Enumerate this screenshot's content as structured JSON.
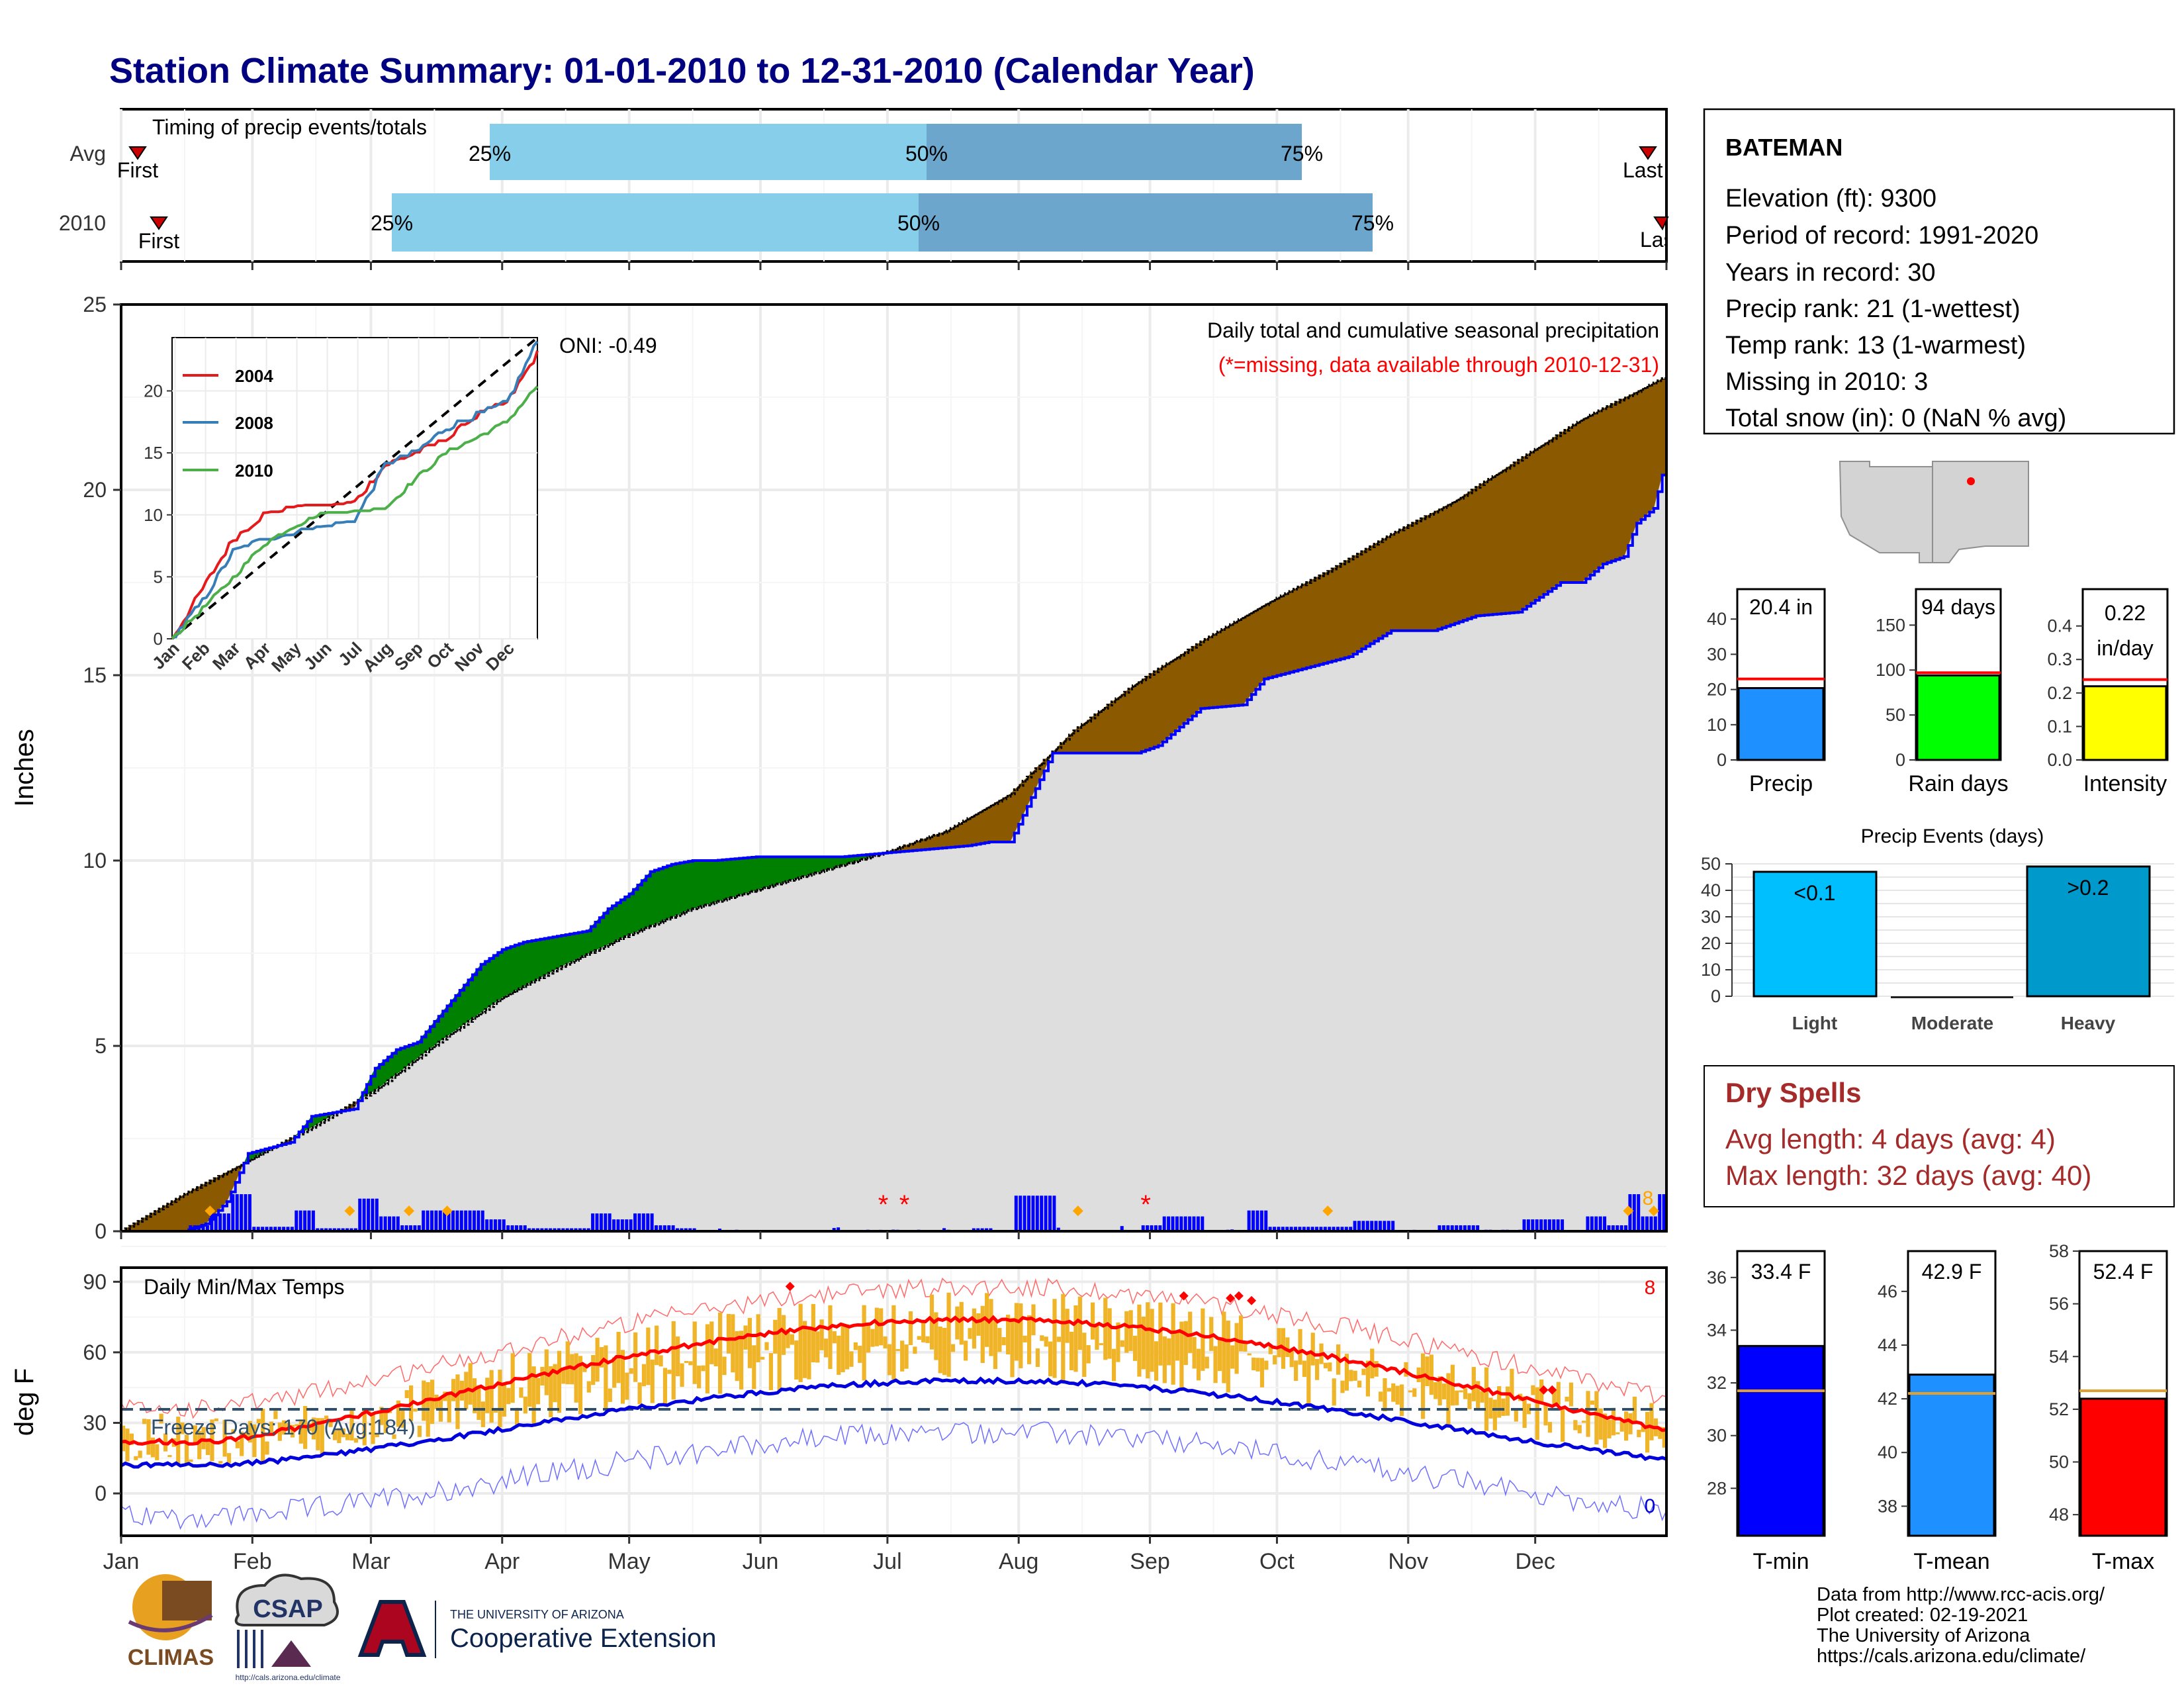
{
  "title": "Station Climate Summary: 01-01-2010 to 12-31-2010 (Calendar Year)",
  "months": [
    "Jan",
    "Feb",
    "Mar",
    "Apr",
    "May",
    "Jun",
    "Jul",
    "Aug",
    "Sep",
    "Oct",
    "Nov",
    "Dec"
  ],
  "timing": {
    "label": "Timing of precip events/totals",
    "rows": [
      {
        "name": "Avg",
        "first": "First",
        "last": "Last",
        "p25": "25%",
        "p50": "50%",
        "p75": "75%"
      },
      {
        "name": "2010",
        "first": "First",
        "last": "Last",
        "p25": "25%",
        "p50": "50%",
        "p75": "75%"
      }
    ]
  },
  "main": {
    "ylabel": "Inches",
    "annot_title": "Daily total and cumulative seasonal precipitation",
    "annot_missing": "(*=missing, data available through 2010-12-31)",
    "oni": "ONI: -0.49",
    "count_label": "8",
    "y_ticks": [
      "0",
      "5",
      "10",
      "15",
      "20",
      "25"
    ]
  },
  "inset": {
    "y_ticks": [
      "0",
      "5",
      "10",
      "15",
      "20"
    ],
    "legend": [
      "2004",
      "2008",
      "2010"
    ]
  },
  "temp": {
    "ylabel": "deg F",
    "label": "Daily Min/Max Temps",
    "freeze": "Freeze Days: 170 (Avg:184)",
    "count_high": "8",
    "count_low": "0",
    "y_ticks": [
      "0",
      "30",
      "60",
      "90"
    ]
  },
  "station": {
    "name": "BATEMAN",
    "lines": [
      "Elevation (ft): 9300",
      "Period of record: 1991-2020",
      "Years in record: 30",
      "Precip rank: 21 (1-wettest)",
      "Temp rank: 13 (1-warmest)",
      "Missing in 2010: 3",
      "Total snow (in): 0 (NaN % avg)"
    ]
  },
  "bars": {
    "precip": {
      "label": "Precip",
      "value_text": "20.4 in"
    },
    "raindays": {
      "label": "Rain days",
      "value_text": "94 days"
    },
    "intensity": {
      "label": "Intensity",
      "value_text_1": "0.22",
      "value_text_2": "in/day"
    }
  },
  "events": {
    "title": "Precip Events (days)",
    "light": "Light",
    "moderate": "Moderate",
    "heavy": "Heavy",
    "light_lbl": "<0.1",
    "heavy_lbl": ">0.2"
  },
  "dry": {
    "title": "Dry Spells",
    "avg": "Avg length: 4 days (avg: 4)",
    "max": "Max length: 32 days (avg: 40)"
  },
  "tbars": {
    "tmin": {
      "label": "T-min",
      "value_text": "33.4 F"
    },
    "tmean": {
      "label": "T-mean",
      "value_text": "42.9 F"
    },
    "tmax": {
      "label": "T-max",
      "value_text": "52.4 F"
    }
  },
  "credits": [
    "Data from http://www.rcc-acis.org/",
    "Plot created: 02-19-2021",
    "The University of Arizona",
    "https://cals.arizona.edu/climate/"
  ],
  "logos": {
    "climas": "CLIMAS",
    "csap": "CSAP",
    "csap_url": "http://cals.arizona.edu/climate",
    "ua_small": "THE UNIVERSITY OF ARIZONA",
    "coop": "Cooperative Extension"
  },
  "colors": {
    "title": "#000080",
    "brown": "#8B5A00",
    "green": "#008000",
    "gray": "#dedede",
    "blue": "#0000ff",
    "orange_dots": "#ffa500",
    "temp_bars": "#f0b428",
    "light_blue": "#87ceeb",
    "steel": "#6ca6cd",
    "red": "#ff0000",
    "dry": "#a52a2a"
  },
  "chart_data": [
    {
      "type": "area",
      "title": "Daily total and cumulative seasonal precipitation",
      "ylabel": "Inches",
      "ylim": [
        0,
        25
      ],
      "x_unit": "day of year",
      "series": [
        {
          "name": "Avg cumulative",
          "x": [
            0,
            15,
            30,
            45,
            60,
            75,
            90,
            105,
            120,
            135,
            150,
            165,
            180,
            195,
            210,
            225,
            240,
            255,
            270,
            285,
            300,
            315,
            330,
            345,
            364
          ],
          "values": [
            0,
            1.0,
            1.9,
            2.8,
            3.8,
            5.1,
            6.3,
            7.2,
            8.0,
            8.7,
            9.2,
            9.7,
            10.2,
            10.8,
            11.8,
            13.5,
            14.8,
            15.9,
            16.9,
            17.8,
            18.8,
            19.7,
            20.8,
            21.9,
            23.0
          ]
        },
        {
          "name": "2010 cumulative",
          "x": [
            0,
            15,
            20,
            25,
            30,
            40,
            45,
            55,
            60,
            65,
            70,
            75,
            80,
            85,
            90,
            95,
            100,
            105,
            110,
            115,
            120,
            125,
            130,
            135,
            140,
            150,
            160,
            170,
            180,
            190,
            200,
            205,
            210,
            215,
            220,
            225,
            230,
            240,
            245,
            250,
            255,
            265,
            270,
            280,
            290,
            300,
            310,
            315,
            320,
            330,
            340,
            345,
            350,
            355,
            358,
            362,
            364
          ],
          "values": [
            0,
            0,
            0.2,
            0.8,
            2.1,
            2.4,
            3.1,
            3.3,
            4.4,
            4.9,
            5.1,
            5.8,
            6.5,
            7.2,
            7.6,
            7.8,
            7.9,
            8.0,
            8.1,
            8.7,
            9.1,
            9.7,
            9.9,
            10.0,
            10.0,
            10.1,
            10.1,
            10.1,
            10.2,
            10.3,
            10.4,
            10.5,
            10.5,
            11.7,
            12.9,
            12.9,
            12.9,
            12.9,
            13.1,
            13.6,
            14.1,
            14.2,
            14.9,
            15.2,
            15.5,
            16.2,
            16.2,
            16.4,
            16.6,
            16.7,
            17.5,
            17.5,
            18.0,
            18.2,
            19.1,
            19.5,
            20.4
          ]
        }
      ]
    },
    {
      "type": "line",
      "series": [
        {
          "name": "2004",
          "values_by_month": [
            0,
            4,
            8,
            10,
            10.5,
            10.5,
            11,
            14,
            15,
            16,
            18,
            19,
            23
          ]
        },
        {
          "name": "2008",
          "values_by_month": [
            0,
            3,
            7,
            8,
            8.5,
            9,
            9.5,
            14,
            15,
            17,
            18,
            19,
            24
          ]
        },
        {
          "name": "2010",
          "values_by_month": [
            0,
            2.4,
            4.9,
            7.6,
            9.1,
            10.1,
            10.2,
            10.5,
            12.9,
            15.0,
            16.2,
            17.5,
            20.4
          ]
        }
      ],
      "ylim": [
        0,
        24
      ]
    },
    {
      "type": "bar",
      "categories": [
        "Precip",
        "Rain days",
        "Intensity"
      ],
      "values": [
        20.4,
        94,
        0.22
      ],
      "averages": [
        23,
        97,
        0.24
      ]
    },
    {
      "type": "bar",
      "title": "Precip Events (days)",
      "categories": [
        "Light",
        "Moderate",
        "Heavy"
      ],
      "values": [
        47,
        0,
        49
      ],
      "ylim": [
        0,
        50
      ]
    },
    {
      "type": "bar",
      "categories": [
        "T-min",
        "T-mean",
        "T-max"
      ],
      "values": [
        33.4,
        42.9,
        52.4
      ],
      "averages": [
        31.7,
        42.2,
        52.7
      ]
    }
  ]
}
